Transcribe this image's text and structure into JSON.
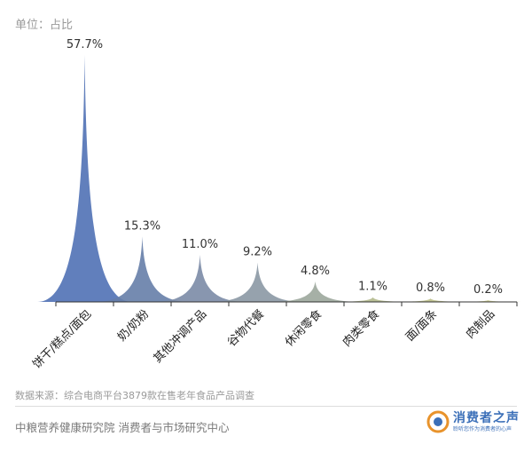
{
  "unit_label": "单位：占比",
  "source": "数据来源：综合电商平台3879款在售老年食品产品调查",
  "organizations": "中粮营养健康研究院 消费者与市场研究中心",
  "logo": {
    "name": "消费者之声",
    "slogan": "聆听您作为消费者的心声"
  },
  "chart_data": {
    "type": "bar",
    "categories": [
      "饼干/糕点/面包",
      "奶/奶粉",
      "其他冲调产品",
      "谷物代餐",
      "休闲零食",
      "肉类零食",
      "面/面条",
      "肉制品"
    ],
    "values": [
      57.7,
      15.3,
      11.0,
      9.2,
      4.8,
      1.1,
      0.8,
      0.2
    ],
    "value_labels": [
      "57.7%",
      "15.3%",
      "11.0%",
      "9.2%",
      "4.8%",
      "1.1%",
      "0.8%",
      "0.2%"
    ],
    "ylim": [
      0,
      60
    ],
    "colors": [
      "#5071b5",
      "#667ea8",
      "#7b8ba6",
      "#8b98a4",
      "#9ca79c",
      "#b3b98c",
      "#bcc088",
      "#c6c78a"
    ],
    "bar_style": "peak-spike"
  }
}
